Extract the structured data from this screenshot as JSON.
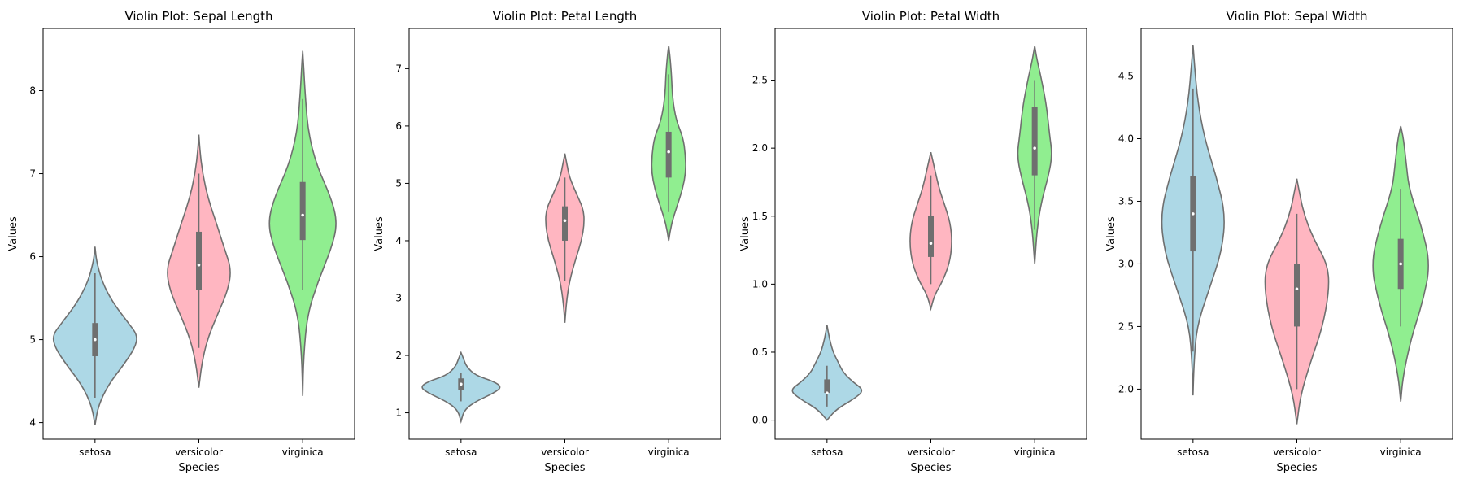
{
  "chart_data": [
    {
      "type": "violin",
      "title": "Violin Plot: Sepal Length",
      "xlabel": "Species",
      "ylabel": "Values",
      "categories": [
        "setosa",
        "versicolor",
        "virginica"
      ],
      "colors": [
        "#add8e6",
        "#ffb6c1",
        "#90ee90"
      ],
      "ylim": [
        3.8,
        8.75
      ],
      "yticks": [
        4,
        5,
        6,
        7,
        8
      ],
      "yticklabels": [
        "4",
        "5",
        "6",
        "7",
        "8"
      ],
      "stats": [
        {
          "min": 4.3,
          "q1": 4.8,
          "median": 5.0,
          "q3": 5.2,
          "max": 5.8
        },
        {
          "min": 4.9,
          "q1": 5.6,
          "median": 5.9,
          "q3": 6.3,
          "max": 7.0
        },
        {
          "min": 5.6,
          "q1": 6.2,
          "median": 6.5,
          "q3": 6.9,
          "max": 7.9
        }
      ],
      "density": [
        [
          [
            3.97,
            0.0
          ],
          [
            4.2,
            0.07
          ],
          [
            4.45,
            0.28
          ],
          [
            4.7,
            0.62
          ],
          [
            4.9,
            0.86
          ],
          [
            5.05,
            0.92
          ],
          [
            5.2,
            0.72
          ],
          [
            5.45,
            0.38
          ],
          [
            5.7,
            0.15
          ],
          [
            5.95,
            0.03
          ],
          [
            6.12,
            0.0
          ]
        ],
        [
          [
            4.42,
            0.0
          ],
          [
            4.7,
            0.06
          ],
          [
            5.0,
            0.18
          ],
          [
            5.3,
            0.4
          ],
          [
            5.6,
            0.63
          ],
          [
            5.85,
            0.7
          ],
          [
            6.1,
            0.55
          ],
          [
            6.4,
            0.38
          ],
          [
            6.7,
            0.2
          ],
          [
            7.0,
            0.08
          ],
          [
            7.3,
            0.02
          ],
          [
            7.47,
            0.0
          ]
        ],
        [
          [
            4.32,
            0.0
          ],
          [
            4.8,
            0.02
          ],
          [
            5.3,
            0.1
          ],
          [
            5.7,
            0.33
          ],
          [
            6.1,
            0.62
          ],
          [
            6.4,
            0.75
          ],
          [
            6.7,
            0.62
          ],
          [
            7.1,
            0.3
          ],
          [
            7.5,
            0.12
          ],
          [
            7.9,
            0.06
          ],
          [
            8.3,
            0.02
          ],
          [
            8.48,
            0.0
          ]
        ]
      ]
    },
    {
      "type": "violin",
      "title": "Violin Plot: Petal Length",
      "xlabel": "Species",
      "ylabel": "Values",
      "categories": [
        "setosa",
        "versicolor",
        "virginica"
      ],
      "colors": [
        "#add8e6",
        "#ffb6c1",
        "#90ee90"
      ],
      "ylim": [
        0.54,
        7.7
      ],
      "yticks": [
        1,
        2,
        3,
        4,
        5,
        6,
        7
      ],
      "yticklabels": [
        "1",
        "2",
        "3",
        "4",
        "5",
        "6",
        "7"
      ],
      "stats": [
        {
          "min": 1.2,
          "q1": 1.4,
          "median": 1.5,
          "q3": 1.6,
          "max": 1.7
        },
        {
          "min": 3.3,
          "q1": 4.0,
          "median": 4.35,
          "q3": 4.6,
          "max": 5.1
        },
        {
          "min": 4.5,
          "q1": 5.1,
          "median": 5.55,
          "q3": 5.9,
          "max": 6.9
        }
      ],
      "density": [
        [
          [
            0.85,
            0.0
          ],
          [
            1.05,
            0.07
          ],
          [
            1.2,
            0.32
          ],
          [
            1.35,
            0.72
          ],
          [
            1.45,
            0.88
          ],
          [
            1.55,
            0.7
          ],
          [
            1.65,
            0.32
          ],
          [
            1.8,
            0.12
          ],
          [
            1.95,
            0.05
          ],
          [
            2.05,
            0.0
          ]
        ],
        [
          [
            2.57,
            0.0
          ],
          [
            2.9,
            0.03
          ],
          [
            3.3,
            0.1
          ],
          [
            3.7,
            0.24
          ],
          [
            4.0,
            0.36
          ],
          [
            4.3,
            0.42
          ],
          [
            4.55,
            0.4
          ],
          [
            4.8,
            0.26
          ],
          [
            5.1,
            0.1
          ],
          [
            5.35,
            0.04
          ],
          [
            5.52,
            0.0
          ]
        ],
        [
          [
            4.0,
            0.0
          ],
          [
            4.3,
            0.06
          ],
          [
            4.6,
            0.18
          ],
          [
            4.9,
            0.3
          ],
          [
            5.2,
            0.37
          ],
          [
            5.5,
            0.36
          ],
          [
            5.8,
            0.31
          ],
          [
            6.1,
            0.16
          ],
          [
            6.5,
            0.08
          ],
          [
            6.9,
            0.06
          ],
          [
            7.2,
            0.03
          ],
          [
            7.4,
            0.0
          ]
        ]
      ]
    },
    {
      "type": "violin",
      "title": "Violin Plot: Petal Width",
      "xlabel": "Species",
      "ylabel": "Values",
      "categories": [
        "setosa",
        "versicolor",
        "virginica"
      ],
      "colors": [
        "#add8e6",
        "#ffb6c1",
        "#90ee90"
      ],
      "ylim": [
        -0.14,
        2.88
      ],
      "yticks": [
        0.0,
        0.5,
        1.0,
        1.5,
        2.0,
        2.5
      ],
      "yticklabels": [
        "0.0",
        "0.5",
        "1.0",
        "1.5",
        "2.0",
        "2.5"
      ],
      "stats": [
        {
          "min": 0.1,
          "q1": 0.2,
          "median": 0.2,
          "q3": 0.3,
          "max": 0.4
        },
        {
          "min": 1.0,
          "q1": 1.2,
          "median": 1.3,
          "q3": 1.5,
          "max": 1.8
        },
        {
          "min": 1.4,
          "q1": 1.8,
          "median": 2.0,
          "q3": 2.3,
          "max": 2.5
        }
      ],
      "density": [
        [
          [
            0.0,
            0.0
          ],
          [
            0.08,
            0.2
          ],
          [
            0.16,
            0.6
          ],
          [
            0.22,
            0.8
          ],
          [
            0.28,
            0.56
          ],
          [
            0.35,
            0.35
          ],
          [
            0.42,
            0.25
          ],
          [
            0.5,
            0.13
          ],
          [
            0.6,
            0.05
          ],
          [
            0.7,
            0.0
          ]
        ],
        [
          [
            0.82,
            0.0
          ],
          [
            0.92,
            0.08
          ],
          [
            1.02,
            0.25
          ],
          [
            1.15,
            0.4
          ],
          [
            1.3,
            0.46
          ],
          [
            1.45,
            0.42
          ],
          [
            1.58,
            0.3
          ],
          [
            1.7,
            0.18
          ],
          [
            1.85,
            0.08
          ],
          [
            1.97,
            0.0
          ]
        ],
        [
          [
            1.15,
            0.0
          ],
          [
            1.4,
            0.05
          ],
          [
            1.6,
            0.14
          ],
          [
            1.8,
            0.3
          ],
          [
            1.95,
            0.38
          ],
          [
            2.1,
            0.32
          ],
          [
            2.3,
            0.26
          ],
          [
            2.5,
            0.15
          ],
          [
            2.65,
            0.05
          ],
          [
            2.75,
            0.0
          ]
        ]
      ]
    },
    {
      "type": "violin",
      "title": "Violin Plot: Sepal Width",
      "xlabel": "Species",
      "ylabel": "Values",
      "categories": [
        "setosa",
        "versicolor",
        "virginica"
      ],
      "colors": [
        "#add8e6",
        "#ffb6c1",
        "#90ee90"
      ],
      "ylim": [
        1.6,
        4.88
      ],
      "yticks": [
        2.0,
        2.5,
        3.0,
        3.5,
        4.0,
        4.5
      ],
      "yticklabels": [
        "2.0",
        "2.5",
        "3.0",
        "3.5",
        "4.0",
        "4.5"
      ],
      "stats": [
        {
          "min": 2.3,
          "q1": 3.1,
          "median": 3.4,
          "q3": 3.7,
          "max": 4.4
        },
        {
          "min": 2.0,
          "q1": 2.5,
          "median": 2.8,
          "q3": 3.0,
          "max": 3.4
        },
        {
          "min": 2.5,
          "q1": 2.8,
          "median": 3.0,
          "q3": 3.2,
          "max": 3.6
        }
      ],
      "density": [
        [
          [
            1.95,
            0.0
          ],
          [
            2.2,
            0.02
          ],
          [
            2.5,
            0.08
          ],
          [
            2.8,
            0.35
          ],
          [
            3.1,
            0.62
          ],
          [
            3.4,
            0.7
          ],
          [
            3.7,
            0.5
          ],
          [
            4.0,
            0.25
          ],
          [
            4.3,
            0.1
          ],
          [
            4.6,
            0.03
          ],
          [
            4.75,
            0.0
          ]
        ],
        [
          [
            1.72,
            0.0
          ],
          [
            1.95,
            0.08
          ],
          [
            2.2,
            0.28
          ],
          [
            2.5,
            0.56
          ],
          [
            2.8,
            0.7
          ],
          [
            3.0,
            0.66
          ],
          [
            3.2,
            0.36
          ],
          [
            3.4,
            0.15
          ],
          [
            3.6,
            0.04
          ],
          [
            3.68,
            0.0
          ]
        ],
        [
          [
            1.9,
            0.0
          ],
          [
            2.1,
            0.05
          ],
          [
            2.4,
            0.22
          ],
          [
            2.7,
            0.48
          ],
          [
            3.0,
            0.64
          ],
          [
            3.3,
            0.45
          ],
          [
            3.6,
            0.18
          ],
          [
            3.8,
            0.12
          ],
          [
            4.0,
            0.06
          ],
          [
            4.1,
            0.0
          ]
        ]
      ]
    }
  ]
}
